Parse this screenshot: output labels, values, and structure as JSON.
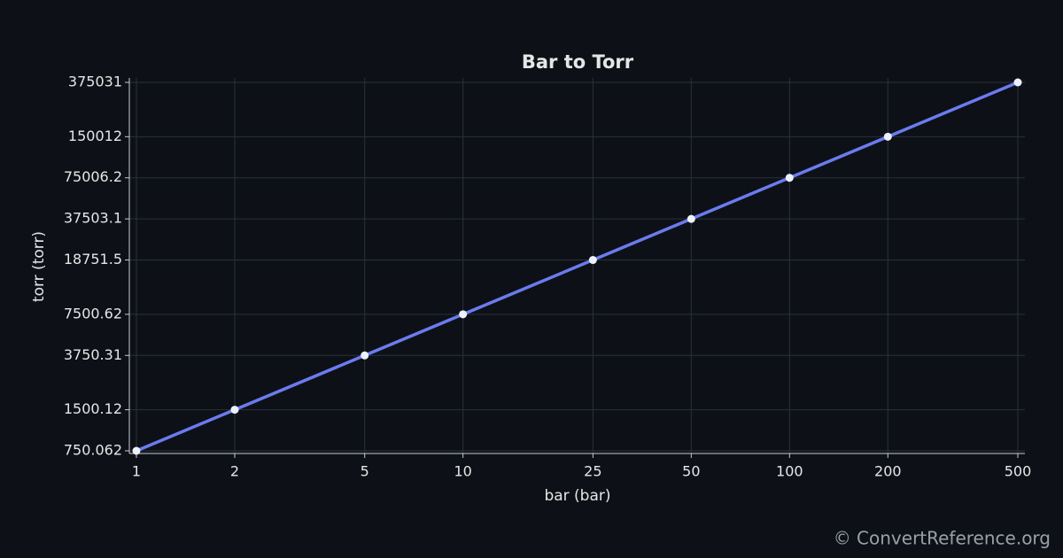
{
  "chart_data": {
    "type": "line",
    "title": "Bar to Torr",
    "x_label": "bar (bar)",
    "y_label": "torr (torr)",
    "x": [
      1,
      2,
      5,
      10,
      25,
      50,
      100,
      200,
      500
    ],
    "values": [
      750.062,
      1500.12,
      3750.31,
      7500.62,
      18751.5,
      37503.1,
      75006.2,
      150012,
      375031
    ],
    "color": "#6b7bf0",
    "xlim": [
      1,
      500
    ],
    "ylim": [
      750.062,
      375031
    ],
    "xticks": [
      1,
      2,
      5,
      10,
      25,
      50,
      100,
      200,
      500
    ],
    "yticks": [
      750.062,
      1500.12,
      3750.31,
      7500.62,
      18751.5,
      37503.1,
      75006.2,
      150012,
      375031
    ],
    "xscale": "log",
    "yscale": "log",
    "grid": true
  },
  "footer": "© ConvertReference.org"
}
